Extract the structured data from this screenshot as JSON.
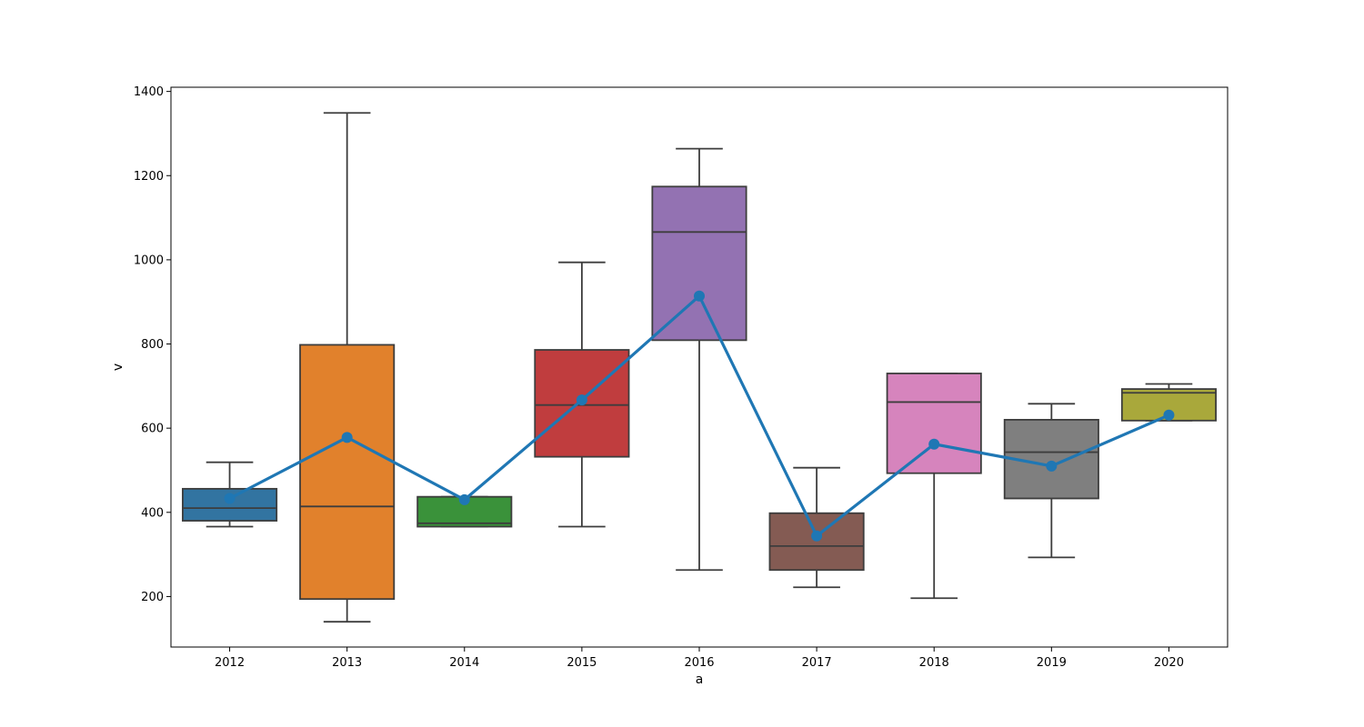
{
  "chart_data": {
    "type": "box",
    "xlabel": "a",
    "ylabel": "v",
    "categories": [
      "2012",
      "2013",
      "2014",
      "2015",
      "2016",
      "2017",
      "2018",
      "2019",
      "2020"
    ],
    "ylim": [
      80,
      1410
    ],
    "yticks": [
      200,
      400,
      600,
      800,
      1000,
      1200,
      1400
    ],
    "boxes": [
      {
        "category": "2012",
        "whisker_low": 366,
        "q1": 380,
        "median": 410,
        "q3": 456,
        "whisker_high": 519,
        "color": "#3274a1"
      },
      {
        "category": "2013",
        "whisker_low": 140,
        "q1": 194,
        "median": 414,
        "q3": 798,
        "whisker_high": 1349,
        "color": "#e1812c"
      },
      {
        "category": "2014",
        "whisker_low": 366,
        "q1": 366,
        "median": 374,
        "q3": 437,
        "whisker_high": 437,
        "color": "#3a923a"
      },
      {
        "category": "2015",
        "whisker_low": 366,
        "q1": 532,
        "median": 655,
        "q3": 786,
        "whisker_high": 994,
        "color": "#c03d3e"
      },
      {
        "category": "2016",
        "whisker_low": 263,
        "q1": 809,
        "median": 1066,
        "q3": 1174,
        "whisker_high": 1264,
        "color": "#9372b2"
      },
      {
        "category": "2017",
        "whisker_low": 222,
        "q1": 263,
        "median": 320,
        "q3": 398,
        "whisker_high": 506,
        "color": "#845b53"
      },
      {
        "category": "2018",
        "whisker_low": 196,
        "q1": 493,
        "median": 662,
        "q3": 730,
        "whisker_high": 730,
        "color": "#d684bd"
      },
      {
        "category": "2019",
        "whisker_low": 293,
        "q1": 433,
        "median": 543,
        "q3": 620,
        "whisker_high": 658,
        "color": "#7f7f7f"
      },
      {
        "category": "2020",
        "whisker_low": 618,
        "q1": 618,
        "median": 684,
        "q3": 693,
        "whisker_high": 705,
        "color": "#a9a83b"
      }
    ],
    "series": [
      {
        "values": [
          433,
          578,
          430,
          667,
          914,
          344,
          562,
          510,
          631
        ],
        "color": "#1f77b4"
      }
    ],
    "grid": false,
    "legend": "none"
  }
}
